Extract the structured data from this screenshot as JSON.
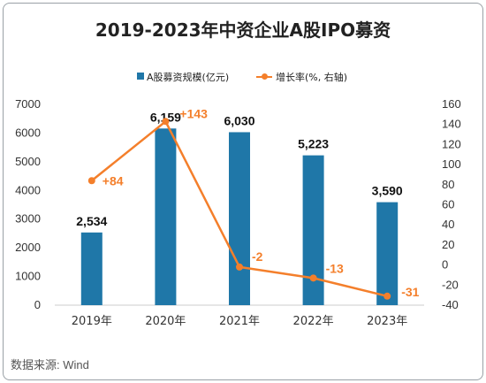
{
  "title": "2019-2023年中资企业A股IPO募资",
  "legend": {
    "bar_label": "A股募资规模(亿元)",
    "line_label": "增长率(%, 右轴)"
  },
  "source": "数据来源: Wind",
  "colors": {
    "bar": "#1f77a8",
    "line": "#f47f2b"
  },
  "chart_data": {
    "type": "bar",
    "categories": [
      "2019年",
      "2020年",
      "2021年",
      "2022年",
      "2023年"
    ],
    "series": [
      {
        "name": "A股募资规模(亿元)",
        "type": "bar",
        "axis": "left",
        "values": [
          2534,
          6159,
          6030,
          5223,
          3590
        ],
        "labels": [
          "2,534",
          "6,159",
          "6,030",
          "5,223",
          "3,590"
        ]
      },
      {
        "name": "增长率(%, 右轴)",
        "type": "line",
        "axis": "right",
        "values": [
          84,
          143,
          -2,
          -13,
          -31
        ],
        "labels": [
          "+84",
          "+143",
          "-2",
          "-13",
          "-31"
        ]
      }
    ],
    "left_axis": {
      "ylim": [
        0,
        7000
      ],
      "ticks": [
        "0",
        "1000",
        "2000",
        "3000",
        "4000",
        "5000",
        "6000",
        "7000"
      ]
    },
    "right_axis": {
      "ylim": [
        -40,
        160
      ],
      "ticks": [
        "-40",
        "-20",
        "0",
        "20",
        "40",
        "60",
        "80",
        "100",
        "120",
        "140",
        "160"
      ]
    },
    "legend_position": "top",
    "grid": false
  }
}
